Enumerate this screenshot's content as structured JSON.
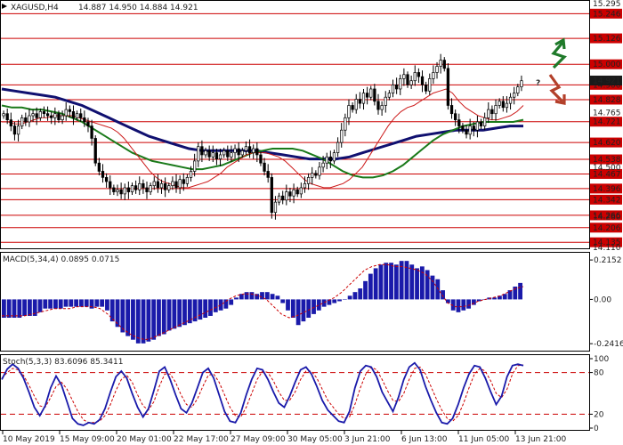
{
  "header": {
    "symbol": "XAGUSD,H4",
    "ohlc": "14.887 14.950 14.884 14.921"
  },
  "colors": {
    "candle": "#000000",
    "level": "#cc0000",
    "ma_fast": "#cc1a1a",
    "ma_mid": "#1a7a1a",
    "ma_slow": "#101070",
    "macd_hist": "#1a1aaa",
    "macd_signal": "#cc0000",
    "stoch_main": "#1a1aaa",
    "stoch_signal": "#cc0000",
    "arrow_up": "#1f7a2a",
    "arrow_down": "#b3402a",
    "question": "#b3402a",
    "label_bg": "#cc0000",
    "current_label_bg": "#1a1a1a"
  },
  "chart_data": [
    {
      "type": "candlestick",
      "title": "",
      "y_ticks": [
        "15.295",
        "15.246",
        "15.126",
        "15.000",
        "14.900",
        "14.828",
        "14.765",
        "14.721",
        "14.620",
        "14.538",
        "14.500",
        "14.467",
        "14.396",
        "14.342",
        "14.266",
        "14.260",
        "14.206",
        "14.135",
        "14.110"
      ],
      "ylim": [
        14.11,
        15.295
      ],
      "levels": [
        {
          "value": 15.246,
          "label": "15.246"
        },
        {
          "value": 15.126,
          "label": "15.126"
        },
        {
          "value": 15.0,
          "label": "15.000"
        },
        {
          "value": 14.9,
          "label": "14.900"
        },
        {
          "value": 14.828,
          "label": "14.828"
        },
        {
          "value": 14.721,
          "label": "14.721"
        },
        {
          "value": 14.62,
          "label": "14.620"
        },
        {
          "value": 14.538,
          "label": "14.538"
        },
        {
          "value": 14.467,
          "label": "14.467"
        },
        {
          "value": 14.396,
          "label": "14.396"
        },
        {
          "value": 14.342,
          "label": "14.342"
        },
        {
          "value": 14.266,
          "label": "14.266"
        },
        {
          "value": 14.206,
          "label": "14.206"
        },
        {
          "value": 14.135,
          "label": "14.135"
        }
      ],
      "current_price": 14.921,
      "current_price_label": "14.921",
      "x_labels": [
        "10 May 2019",
        "15 May 09:00",
        "20 May 01:00",
        "22 May 17:00",
        "27 May 09:00",
        "30 May 05:00",
        "3 Jun 21:00",
        "6 Jun 13:00",
        "11 Jun 05:00",
        "13 Jun 21:00"
      ],
      "x_label_index": [
        0,
        21,
        42,
        63,
        84,
        105,
        126,
        147,
        168,
        189
      ],
      "candles_close": [
        14.76,
        14.73,
        14.7,
        14.66,
        14.7,
        14.74,
        14.72,
        14.75,
        14.76,
        14.74,
        14.77,
        14.76,
        14.75,
        14.74,
        14.76,
        14.73,
        14.75,
        14.78,
        14.77,
        14.74,
        14.76,
        14.74,
        14.72,
        14.7,
        14.64,
        14.52,
        14.48,
        14.45,
        14.43,
        14.4,
        14.38,
        14.39,
        14.37,
        14.4,
        14.38,
        14.41,
        14.39,
        14.42,
        14.4,
        14.38,
        14.41,
        14.43,
        14.4,
        14.42,
        14.39,
        14.41,
        14.43,
        14.4,
        14.44,
        14.42,
        14.45,
        14.48,
        14.53,
        14.6,
        14.56,
        14.58,
        14.55,
        14.57,
        14.54,
        14.56,
        14.58,
        14.55,
        14.57,
        14.59,
        14.56,
        14.58,
        14.6,
        14.57,
        14.59,
        14.56,
        14.52,
        14.48,
        14.45,
        14.28,
        14.33,
        14.36,
        14.34,
        14.38,
        14.36,
        14.39,
        14.37,
        14.4,
        14.42,
        14.45,
        14.47,
        14.46,
        14.5,
        14.52,
        14.55,
        14.53,
        14.57,
        14.62,
        14.68,
        14.74,
        14.8,
        14.78,
        14.83,
        14.81,
        14.86,
        14.84,
        14.88,
        14.82,
        14.78,
        14.8,
        14.84,
        14.86,
        14.9,
        14.88,
        14.93,
        14.95,
        14.9,
        14.92,
        14.96,
        14.94,
        14.9,
        14.87,
        14.93,
        14.96,
        14.99,
        15.02,
        14.98,
        14.8,
        14.76,
        14.73,
        14.7,
        14.68,
        14.66,
        14.7,
        14.68,
        14.72,
        14.7,
        14.74,
        14.78,
        14.76,
        14.8,
        14.82,
        14.79,
        14.81,
        14.84,
        14.86,
        14.89,
        14.92
      ],
      "ma_fast": [
        14.72,
        14.72,
        14.71,
        14.71,
        14.72,
        14.73,
        14.74,
        14.74,
        14.75,
        14.75,
        14.75,
        14.75,
        14.74,
        14.73,
        14.72,
        14.71,
        14.7,
        14.69,
        14.67,
        14.64,
        14.6,
        14.56,
        14.52,
        14.48,
        14.45,
        14.43,
        14.42,
        14.41,
        14.4,
        14.4,
        14.41,
        14.42,
        14.43,
        14.45,
        14.47,
        14.5,
        14.52,
        14.54,
        14.56,
        14.57,
        14.57,
        14.57,
        14.56,
        14.55,
        14.53,
        14.5,
        14.47,
        14.44,
        14.42,
        14.41,
        14.4,
        14.4,
        14.41,
        14.42,
        14.44,
        14.47,
        14.5,
        14.55,
        14.6,
        14.65,
        14.7,
        14.74,
        14.77,
        14.79,
        14.8,
        14.82,
        14.84,
        14.86,
        14.87,
        14.88,
        14.86,
        14.82,
        14.79,
        14.77,
        14.75,
        14.74,
        14.73,
        14.73,
        14.74,
        14.75,
        14.77,
        14.8
      ],
      "ma_mid": [
        14.8,
        14.79,
        14.79,
        14.78,
        14.78,
        14.77,
        14.76,
        14.74,
        14.72,
        14.69,
        14.66,
        14.63,
        14.6,
        14.57,
        14.55,
        14.53,
        14.52,
        14.51,
        14.5,
        14.49,
        14.49,
        14.5,
        14.51,
        14.53,
        14.55,
        14.57,
        14.58,
        14.59,
        14.59,
        14.59,
        14.58,
        14.56,
        14.54,
        14.51,
        14.48,
        14.46,
        14.45,
        14.45,
        14.46,
        14.48,
        14.51,
        14.55,
        14.59,
        14.63,
        14.66,
        14.68,
        14.7,
        14.71,
        14.72,
        14.72,
        14.72,
        14.72,
        14.73
      ],
      "ma_slow": [
        14.88,
        14.87,
        14.86,
        14.85,
        14.84,
        14.82,
        14.8,
        14.77,
        14.74,
        14.71,
        14.68,
        14.65,
        14.63,
        14.61,
        14.59,
        14.58,
        14.58,
        14.58,
        14.58,
        14.58,
        14.57,
        14.56,
        14.55,
        14.54,
        14.54,
        14.54,
        14.55,
        14.57,
        14.59,
        14.61,
        14.63,
        14.65,
        14.66,
        14.67,
        14.68,
        14.68,
        14.68,
        14.69,
        14.7,
        14.7
      ],
      "annotations": [
        {
          "type": "arrow-up",
          "text": ""
        },
        {
          "type": "question",
          "text": "?"
        },
        {
          "type": "arrow-down",
          "text": ""
        }
      ]
    },
    {
      "type": "bar",
      "title": "MACD(5,34,4) 0.0895 0.0715",
      "y_ticks": [
        "0.2152",
        "0.00",
        "-0.2416"
      ],
      "ylim": [
        -0.27,
        0.24
      ],
      "histogram": [
        -0.1,
        -0.1,
        -0.1,
        -0.1,
        -0.09,
        -0.09,
        -0.09,
        -0.07,
        -0.05,
        -0.05,
        -0.05,
        -0.05,
        -0.04,
        -0.04,
        -0.04,
        -0.04,
        -0.04,
        -0.05,
        -0.04,
        -0.04,
        -0.06,
        -0.12,
        -0.15,
        -0.18,
        -0.2,
        -0.22,
        -0.24,
        -0.24,
        -0.23,
        -0.22,
        -0.2,
        -0.19,
        -0.17,
        -0.16,
        -0.15,
        -0.14,
        -0.13,
        -0.12,
        -0.11,
        -0.1,
        -0.09,
        -0.07,
        -0.06,
        -0.05,
        -0.03,
        0.01,
        0.03,
        0.04,
        0.04,
        0.03,
        0.04,
        0.04,
        0.03,
        0.02,
        -0.02,
        -0.06,
        -0.1,
        -0.14,
        -0.12,
        -0.1,
        -0.08,
        -0.06,
        -0.04,
        -0.03,
        -0.02,
        -0.01,
        0.0,
        0.02,
        0.04,
        0.06,
        0.1,
        0.14,
        0.17,
        0.19,
        0.2,
        0.2,
        0.19,
        0.21,
        0.21,
        0.19,
        0.17,
        0.18,
        0.16,
        0.13,
        0.11,
        0.05,
        -0.02,
        -0.06,
        -0.07,
        -0.06,
        -0.05,
        -0.03,
        -0.01,
        0.0,
        0.01,
        0.01,
        0.02,
        0.03,
        0.05,
        0.07,
        0.09
      ],
      "signal": [
        -0.09,
        -0.09,
        -0.09,
        -0.09,
        -0.08,
        -0.07,
        -0.06,
        -0.05,
        -0.05,
        -0.05,
        -0.04,
        -0.04,
        -0.04,
        -0.05,
        -0.08,
        -0.12,
        -0.16,
        -0.19,
        -0.21,
        -0.22,
        -0.21,
        -0.19,
        -0.17,
        -0.15,
        -0.13,
        -0.11,
        -0.09,
        -0.07,
        -0.05,
        -0.03,
        0.0,
        0.02,
        0.03,
        0.03,
        0.02,
        0.0,
        -0.04,
        -0.08,
        -0.1,
        -0.09,
        -0.07,
        -0.05,
        -0.03,
        -0.01,
        0.01,
        0.04,
        0.08,
        0.12,
        0.16,
        0.18,
        0.19,
        0.19,
        0.18,
        0.18,
        0.17,
        0.16,
        0.14,
        0.1,
        0.04,
        -0.02,
        -0.04,
        -0.04,
        -0.03,
        -0.01,
        0.0,
        0.01,
        0.02,
        0.04,
        0.06,
        0.07
      ]
    },
    {
      "type": "line",
      "title": "Stoch(5,3,3) 83.6096 85.3411",
      "y_ticks": [
        "100",
        "80",
        "20",
        "0"
      ],
      "ylim": [
        0,
        100
      ],
      "levels": [
        80,
        20
      ],
      "main": [
        70,
        85,
        92,
        86,
        72,
        52,
        30,
        18,
        32,
        58,
        75,
        62,
        38,
        14,
        6,
        4,
        8,
        6,
        12,
        28,
        52,
        74,
        82,
        72,
        50,
        30,
        16,
        28,
        54,
        82,
        88,
        70,
        48,
        28,
        22,
        36,
        58,
        80,
        86,
        72,
        48,
        24,
        10,
        8,
        22,
        48,
        70,
        86,
        84,
        70,
        52,
        36,
        30,
        46,
        66,
        84,
        88,
        78,
        60,
        40,
        26,
        18,
        10,
        8,
        24,
        58,
        82,
        90,
        88,
        74,
        52,
        38,
        24,
        44,
        70,
        88,
        94,
        84,
        60,
        40,
        22,
        8,
        6,
        14,
        34,
        58,
        78,
        90,
        88,
        72,
        52,
        34,
        46,
        74,
        90,
        92,
        90
      ],
      "signal": [
        72,
        80,
        86,
        84,
        76,
        62,
        46,
        32,
        30,
        44,
        60,
        66,
        56,
        40,
        24,
        12,
        8,
        8,
        10,
        18,
        34,
        54,
        70,
        76,
        66,
        48,
        32,
        26,
        38,
        60,
        78,
        78,
        66,
        48,
        34,
        30,
        42,
        60,
        76,
        78,
        66,
        48,
        30,
        18,
        16,
        30,
        50,
        70,
        82,
        80,
        68,
        52,
        40,
        40,
        52,
        70,
        82,
        82,
        72,
        56,
        40,
        30,
        20,
        14,
        16,
        34,
        58,
        78,
        88,
        84,
        70,
        54,
        40,
        38,
        50,
        70,
        86,
        88,
        78,
        60,
        42,
        26,
        14,
        10,
        18,
        36,
        58,
        78,
        86,
        82,
        68,
        50,
        44,
        56,
        78,
        90,
        91
      ]
    }
  ]
}
